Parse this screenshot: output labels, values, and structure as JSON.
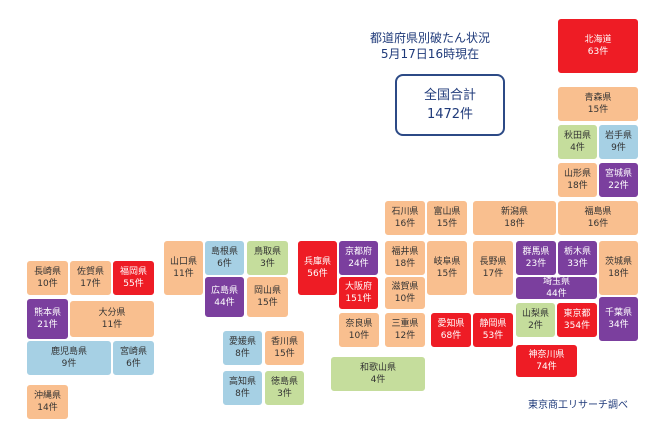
{
  "title": {
    "line1": "都道府県別破たん状況",
    "line2": "5月17日16時現在"
  },
  "total": {
    "label": "全国合計",
    "value": "1472件"
  },
  "source": "東京商工リサーチ調べ",
  "colors": {
    "orange": "#f9bf8f",
    "blue": "#a6d0e4",
    "green": "#c5dd9c",
    "purple": "#7b3f9e",
    "red": "#ee1c25",
    "title": "#1f3a7a"
  },
  "prefectures": [
    {
      "name": "北海道",
      "count": "63件",
      "color": "#ee1c25"
    },
    {
      "name": "青森県",
      "count": "15件",
      "color": "#f9bf8f"
    },
    {
      "name": "秋田県",
      "count": "4件",
      "color": "#c5dd9c"
    },
    {
      "name": "岩手県",
      "count": "9件",
      "color": "#a6d0e4"
    },
    {
      "name": "山形県",
      "count": "18件",
      "color": "#f9bf8f"
    },
    {
      "name": "宮城県",
      "count": "22件",
      "color": "#7b3f9e"
    },
    {
      "name": "石川県",
      "count": "16件",
      "color": "#f9bf8f"
    },
    {
      "name": "富山県",
      "count": "15件",
      "color": "#f9bf8f"
    },
    {
      "name": "新潟県",
      "count": "18件",
      "color": "#f9bf8f"
    },
    {
      "name": "福島県",
      "count": "16件",
      "color": "#f9bf8f"
    },
    {
      "name": "山口県",
      "count": "11件",
      "color": "#f9bf8f"
    },
    {
      "name": "島根県",
      "count": "6件",
      "color": "#a6d0e4"
    },
    {
      "name": "鳥取県",
      "count": "3件",
      "color": "#c5dd9c"
    },
    {
      "name": "兵庫県",
      "count": "56件",
      "color": "#ee1c25"
    },
    {
      "name": "京都府",
      "count": "24件",
      "color": "#7b3f9e"
    },
    {
      "name": "福井県",
      "count": "18件",
      "color": "#f9bf8f"
    },
    {
      "name": "岐阜県",
      "count": "15件",
      "color": "#f9bf8f"
    },
    {
      "name": "長野県",
      "count": "17件",
      "color": "#f9bf8f"
    },
    {
      "name": "群馬県",
      "count": "23件",
      "color": "#7b3f9e"
    },
    {
      "name": "栃木県",
      "count": "33件",
      "color": "#7b3f9e"
    },
    {
      "name": "茨城県",
      "count": "18件",
      "color": "#f9bf8f"
    },
    {
      "name": "長崎県",
      "count": "10件",
      "color": "#f9bf8f"
    },
    {
      "name": "佐賀県",
      "count": "17件",
      "color": "#f9bf8f"
    },
    {
      "name": "福岡県",
      "count": "55件",
      "color": "#ee1c25"
    },
    {
      "name": "広島県",
      "count": "44件",
      "color": "#7b3f9e"
    },
    {
      "name": "岡山県",
      "count": "15件",
      "color": "#f9bf8f"
    },
    {
      "name": "大阪府",
      "count": "151件",
      "color": "#ee1c25"
    },
    {
      "name": "滋賀県",
      "count": "10件",
      "color": "#f9bf8f"
    },
    {
      "name": "埼玉県",
      "count": "44件",
      "color": "#7b3f9e"
    },
    {
      "name": "熊本県",
      "count": "21件",
      "color": "#7b3f9e"
    },
    {
      "name": "大分県",
      "count": "11件",
      "color": "#f9bf8f"
    },
    {
      "name": "山梨県",
      "count": "2件",
      "color": "#c5dd9c"
    },
    {
      "name": "東京都",
      "count": "354件",
      "color": "#ee1c25"
    },
    {
      "name": "千葉県",
      "count": "34件",
      "color": "#7b3f9e"
    },
    {
      "name": "奈良県",
      "count": "10件",
      "color": "#f9bf8f"
    },
    {
      "name": "三重県",
      "count": "12件",
      "color": "#f9bf8f"
    },
    {
      "name": "愛知県",
      "count": "68件",
      "color": "#ee1c25"
    },
    {
      "name": "静岡県",
      "count": "53件",
      "color": "#ee1c25"
    },
    {
      "name": "鹿児島県",
      "count": "9件",
      "color": "#a6d0e4"
    },
    {
      "name": "宮崎県",
      "count": "6件",
      "color": "#a6d0e4"
    },
    {
      "name": "愛媛県",
      "count": "8件",
      "color": "#a6d0e4"
    },
    {
      "name": "香川県",
      "count": "15件",
      "color": "#f9bf8f"
    },
    {
      "name": "神奈川県",
      "count": "74件",
      "color": "#ee1c25"
    },
    {
      "name": "和歌山県",
      "count": "4件",
      "color": "#c5dd9c"
    },
    {
      "name": "高知県",
      "count": "8件",
      "color": "#a6d0e4"
    },
    {
      "name": "徳島県",
      "count": "3件",
      "color": "#c5dd9c"
    },
    {
      "name": "沖縄県",
      "count": "14件",
      "color": "#f9bf8f"
    }
  ]
}
